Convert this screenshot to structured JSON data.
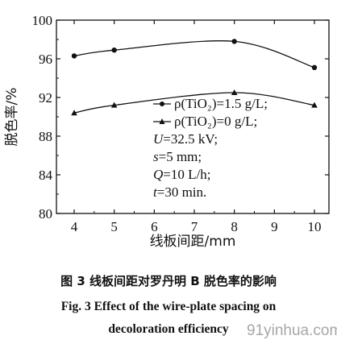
{
  "chart_data": {
    "type": "line",
    "xlabel": "线板间距/mm",
    "ylabel": "脱色率/%",
    "x": [
      4,
      5,
      6,
      7,
      8,
      9,
      10
    ],
    "xlim": [
      4,
      10
    ],
    "ylim": [
      80,
      100
    ],
    "xticks": [
      "4",
      "5",
      "6",
      "7",
      "8",
      "9",
      "10"
    ],
    "yticks": [
      "80",
      "84",
      "88",
      "92",
      "96",
      "100"
    ],
    "grid": false,
    "series": [
      {
        "marker": "circle",
        "x": [
          4,
          5,
          8,
          10
        ],
        "values": [
          96.3,
          96.9,
          97.8,
          95.1
        ]
      },
      {
        "marker": "triangle",
        "x": [
          4,
          5,
          8,
          10
        ],
        "values": [
          90.4,
          91.2,
          92.5,
          91.2
        ]
      }
    ],
    "legend": {
      "placement": "lower-right",
      "entries": [
        {
          "label": "ρ(TiO₂)=1.5 g/L;"
        },
        {
          "label": "ρ(TiO₂)=0 g/L;"
        }
      ]
    },
    "annotations": [
      {
        "italic": "U",
        "text": "=32.5 kV;"
      },
      {
        "italic": "s",
        "text": "=5 mm;"
      },
      {
        "italic": "Q",
        "text": "=10 L/h;"
      },
      {
        "italic": "t",
        "text": "=30 min."
      }
    ]
  },
  "caption": {
    "cn": "图 3  线板间距对罗丹明 B 脱色率的影响",
    "en_line1": "Fig. 3  Effect of the wire-plate spacing on",
    "en_line2": "decoloration efficiency"
  },
  "watermark": "91yinhua.com"
}
